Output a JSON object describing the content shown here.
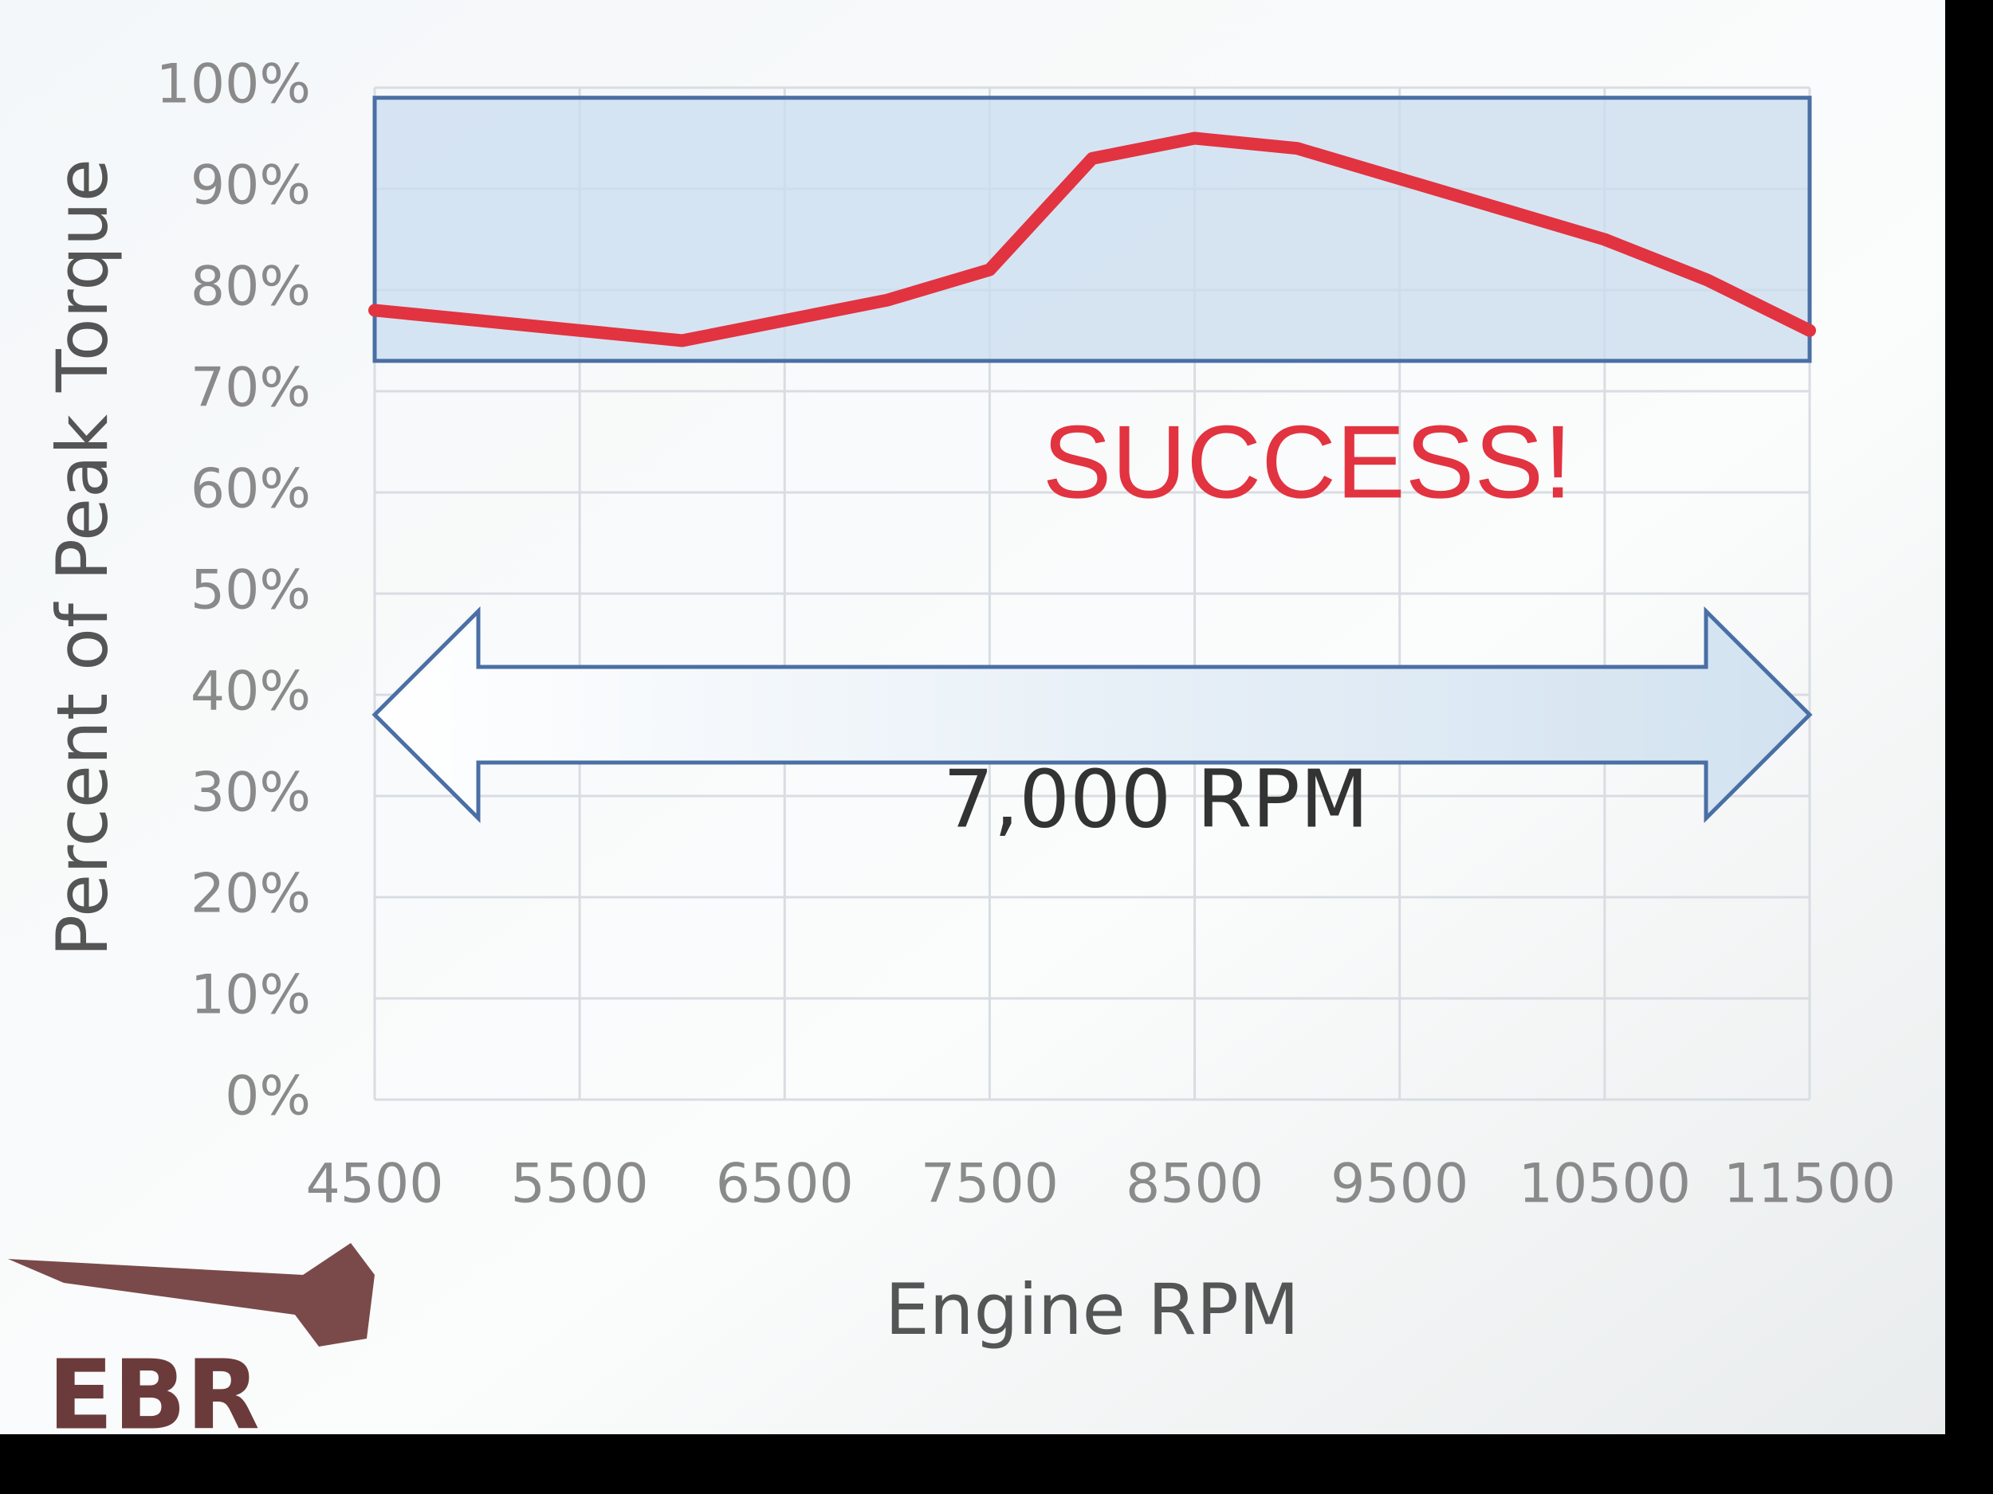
{
  "chart_data": {
    "type": "line",
    "y_label": "Percent of Peak Torque",
    "x_label": "Engine RPM",
    "x": [
      4500,
      5000,
      5500,
      6000,
      6500,
      7000,
      7500,
      8000,
      8500,
      9000,
      9500,
      10000,
      10500,
      11000,
      11500
    ],
    "series": [
      {
        "color": "#e23340",
        "values": [
          78,
          77,
          76,
          75,
          77,
          79,
          82,
          93,
          95,
          94,
          91,
          88,
          85,
          81,
          76
        ]
      }
    ],
    "xlim": [
      4500,
      11500
    ],
    "xticks": [
      4500,
      5500,
      6500,
      7500,
      8500,
      9500,
      10500,
      11500
    ],
    "ylim": [
      0,
      100
    ],
    "yticks": [
      {
        "value": 0,
        "label": "0%"
      },
      {
        "value": 10,
        "label": "10%"
      },
      {
        "value": 20,
        "label": "20%"
      },
      {
        "value": 30,
        "label": "30%"
      },
      {
        "value": 40,
        "label": "40%"
      },
      {
        "value": 50,
        "label": "50%"
      },
      {
        "value": 60,
        "label": "60%"
      },
      {
        "value": 70,
        "label": "70%"
      },
      {
        "value": 80,
        "label": "80%"
      },
      {
        "value": 90,
        "label": "90%"
      },
      {
        "value": 100,
        "label": "100%"
      }
    ],
    "grid": true,
    "highlight_band": [
      73,
      99
    ],
    "band_color": "#c9dcef",
    "annotations": [
      "SUCCESS!",
      "7,000 RPM"
    ]
  },
  "logo": "EBR"
}
